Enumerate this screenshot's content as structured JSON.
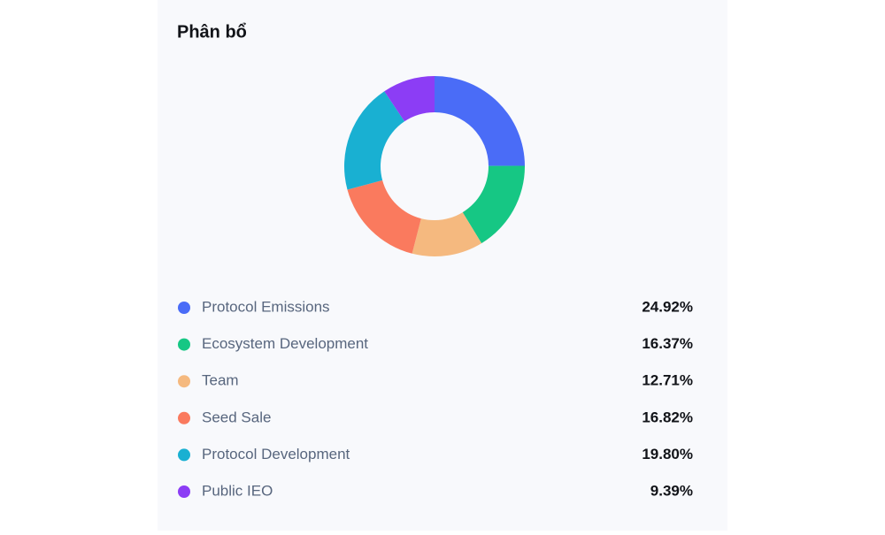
{
  "chart_data": {
    "type": "donut",
    "title": "Phân bổ",
    "categories": [
      "Protocol Emissions",
      "Ecosystem Development",
      "Team",
      "Seed Sale",
      "Protocol Development",
      "Public IEO"
    ],
    "values": [
      24.92,
      16.37,
      12.71,
      16.82,
      19.8,
      9.39
    ],
    "value_labels": [
      "24.92%",
      "16.37%",
      "12.71%",
      "16.82%",
      "19.80%",
      "9.39%"
    ],
    "colors": [
      "#4a6cf7",
      "#16c784",
      "#f5b97f",
      "#fa7a5e",
      "#19b0d2",
      "#8c3df5"
    ]
  }
}
